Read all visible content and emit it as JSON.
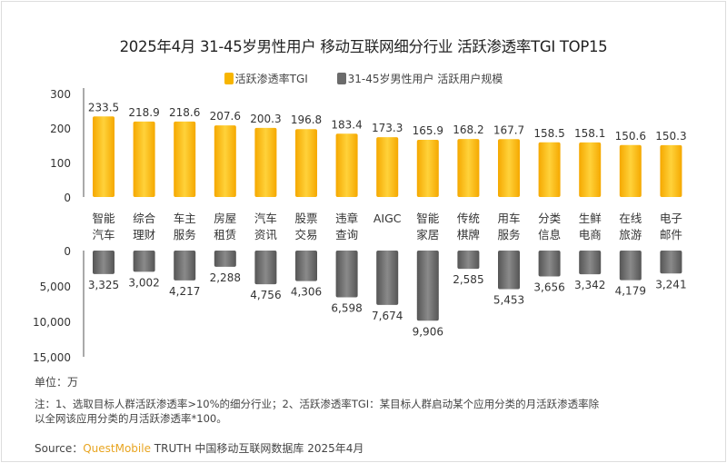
{
  "chart_data": [
    {
      "type": "bar",
      "title": "2025年4月 31-45岁男性用户 移动互联网细分行业 活跃渗透率TGI TOP15",
      "categories": [
        [
          "智能",
          "汽车"
        ],
        [
          "综合",
          "理财"
        ],
        [
          "车主",
          "服务"
        ],
        [
          "房屋",
          "租赁"
        ],
        [
          "汽车",
          "资讯"
        ],
        [
          "股票",
          "交易"
        ],
        [
          "违章",
          "查询"
        ],
        [
          "AIGC",
          ""
        ],
        [
          "智能",
          "家居"
        ],
        [
          "传统",
          "棋牌"
        ],
        [
          "用车",
          "服务"
        ],
        [
          "分类",
          "信息"
        ],
        [
          "生鲜",
          "电商"
        ],
        [
          "在线",
          "旅游"
        ],
        [
          "电子",
          "邮件"
        ]
      ],
      "series": [
        {
          "name": "活跃渗透率TGI",
          "color": "#f7b500",
          "values": [
            233.5,
            218.9,
            218.6,
            207.6,
            200.3,
            196.8,
            183.4,
            173.3,
            165.9,
            168.2,
            167.7,
            158.5,
            158.1,
            150.6,
            150.3
          ]
        }
      ],
      "ylim": [
        0,
        300
      ],
      "yticks": [
        "0",
        "100",
        "200",
        "300"
      ]
    },
    {
      "type": "bar",
      "series": [
        {
          "name": "31-45岁男性用户 活跃用户规模",
          "color": "#6b6b6b",
          "values": [
            3325,
            3002,
            4217,
            2288,
            4756,
            4306,
            6598,
            7674,
            9906,
            2585,
            5453,
            3656,
            3342,
            4179,
            3241
          ]
        }
      ],
      "value_labels": [
        "3,325",
        "3,002",
        "4,217",
        "2,288",
        "4,756",
        "4,306",
        "6,598",
        "7,674",
        "9,906",
        "2,585",
        "5,453",
        "3,656",
        "3,342",
        "4,179",
        "3,241"
      ],
      "ylim": [
        0,
        15000
      ],
      "inverted": true,
      "yticks": [
        "0",
        "5,000",
        "10,000",
        "15,000"
      ],
      "unit": "单位：万"
    }
  ],
  "note": [
    "注：1、选取目标人群活跃渗透率>10%的细分行业；2、活跃渗透率TGI：某目标人群启动某个应用分类的月活跃渗透率除",
    "以全网该应用分类的月活跃渗透率*100。"
  ],
  "source": {
    "prefix": "Source：",
    "brand": "QuestMobile",
    "rest": " TRUTH 中国移动互联网数据库 2025年4月"
  }
}
